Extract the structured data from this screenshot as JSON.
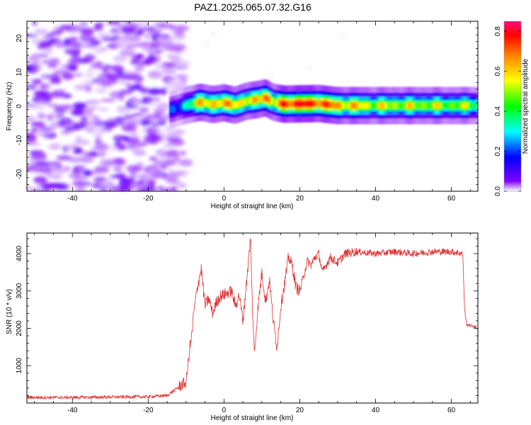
{
  "figure": {
    "title": "PAZ1.2025.065.07.32.G16"
  },
  "chart_data": [
    {
      "type": "heatmap",
      "xlabel": "Height of straight line (km)",
      "ylabel": "Frequency (Hz)",
      "xlim": [
        -52,
        67
      ],
      "ylim": [
        -25,
        25
      ],
      "x_ticks": [
        -40,
        -20,
        0,
        20,
        40,
        60
      ],
      "y_ticks": [
        -20,
        -10,
        0,
        10,
        20
      ],
      "colorbar": {
        "label": "Normalized spectral amplitude",
        "range": [
          0,
          0.85
        ],
        "ticks": [
          0.0,
          0.2,
          0.4,
          0.6,
          0.8
        ],
        "colormap": [
          "#ffffff",
          "#8000ff",
          "#0000ff",
          "#00ffff",
          "#00ff00",
          "#ffff00",
          "#ff8000",
          "#ff0000",
          "#ff1080"
        ]
      },
      "noise_region_x": [
        -52,
        -10
      ],
      "ridge": {
        "x": [
          -14,
          -10,
          -6,
          -3,
          0,
          3,
          6,
          9,
          11,
          13,
          16,
          20,
          25,
          30,
          40,
          50,
          67
        ],
        "freq": [
          -1,
          0.3,
          1.2,
          0.5,
          1.0,
          0.3,
          1.5,
          2.0,
          2.5,
          1.2,
          0.6,
          0.7,
          0.8,
          0.2,
          0.2,
          0.2,
          0.2
        ],
        "amplitude": [
          0.15,
          0.35,
          0.55,
          0.6,
          0.55,
          0.62,
          0.5,
          0.55,
          0.75,
          0.45,
          0.72,
          0.72,
          0.7,
          0.6,
          0.5,
          0.5,
          0.45
        ]
      }
    },
    {
      "type": "line",
      "xlabel": "Height of straight line (km)",
      "ylabel": "SNR (10 * v/v)",
      "xlim": [
        -52,
        67
      ],
      "ylim": [
        0,
        4550
      ],
      "x_ticks": [
        -40,
        -20,
        0,
        20,
        40,
        60
      ],
      "y_ticks": [
        1000,
        2000,
        3000,
        4000
      ],
      "color": "#e03030",
      "series": [
        {
          "x": [
            -52,
            -40,
            -30,
            -20,
            -15,
            -13,
            -11,
            -10,
            -9,
            -8.5,
            -8,
            -7,
            -6,
            -5,
            -4,
            -3,
            -2,
            -1,
            0,
            1,
            2,
            3,
            4,
            5,
            6,
            7,
            7.5,
            8,
            9,
            10,
            11,
            12,
            13,
            14,
            15,
            16,
            17,
            18,
            19,
            20,
            21,
            22,
            23,
            24,
            25,
            26,
            28,
            30,
            32,
            35,
            40,
            45,
            50,
            55,
            60,
            63,
            63.5,
            64,
            66,
            67
          ],
          "y": [
            150,
            150,
            160,
            170,
            200,
            350,
            500,
            550,
            1500,
            1800,
            2400,
            3100,
            3600,
            2600,
            2800,
            2400,
            2700,
            2850,
            2900,
            2950,
            3000,
            2600,
            2900,
            2200,
            3300,
            4400,
            2600,
            1300,
            2600,
            3500,
            2700,
            3300,
            2200,
            1500,
            2600,
            3200,
            3900,
            3700,
            3100,
            3000,
            3400,
            3800,
            3700,
            3900,
            4000,
            3500,
            3900,
            3750,
            4000,
            4050,
            4000,
            4050,
            4000,
            4050,
            4050,
            4000,
            2500,
            2100,
            2050,
            2000
          ]
        }
      ]
    }
  ]
}
